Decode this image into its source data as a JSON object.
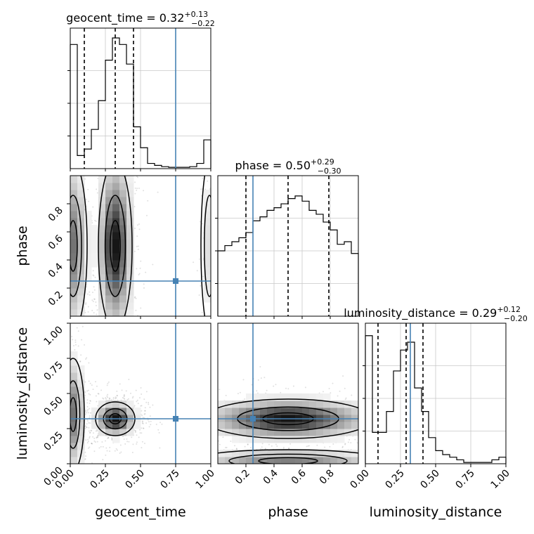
{
  "chart_data": {
    "type": "corner",
    "parameters": [
      "geocent_time",
      "phase",
      "luminosity_distance"
    ],
    "titles": [
      {
        "name": "geocent_time = 0.32",
        "sup": "+0.13",
        "sub": "−0.22"
      },
      {
        "name": "phase = 0.50",
        "sup": "+0.29",
        "sub": "−0.30"
      },
      {
        "name": "luminosity_distance = 0.29",
        "sup": "+0.12",
        "sub": "−0.20"
      }
    ],
    "axis_labels": {
      "x": [
        "geocent_time",
        "phase",
        "luminosity_distance"
      ],
      "y": [
        "phase",
        "luminosity_distance"
      ]
    },
    "ranges": [
      [
        0,
        1
      ],
      [
        0,
        1
      ],
      [
        0,
        1
      ]
    ],
    "ticks": {
      "geocent_time": [
        "0.00",
        "0.25",
        "0.50",
        "0.75",
        "1.00"
      ],
      "phase": [
        "0.2",
        "0.4",
        "0.6",
        "0.8"
      ],
      "luminosity_distance": [
        "0.00",
        "0.25",
        "0.50",
        "0.75",
        "1.00"
      ]
    },
    "tick_values": {
      "geocent_time": [
        0,
        0.25,
        0.5,
        0.75,
        1.0
      ],
      "phase": [
        0.2,
        0.4,
        0.6,
        0.8
      ],
      "luminosity_distance": [
        0,
        0.25,
        0.5,
        0.75,
        1.0
      ]
    },
    "truths": [
      0.75,
      0.25,
      0.32
    ],
    "truth_color": "#4682b4",
    "quantiles": [
      [
        0.1,
        0.32,
        0.45
      ],
      [
        0.2,
        0.5,
        0.79
      ],
      [
        0.09,
        0.29,
        0.41
      ]
    ],
    "histograms": [
      {
        "bin_edges": [
          0,
          0.05,
          0.1,
          0.15,
          0.2,
          0.25,
          0.3,
          0.35,
          0.4,
          0.45,
          0.5,
          0.55,
          0.6,
          0.65,
          0.7,
          0.75,
          0.8,
          0.85,
          0.9,
          0.95,
          1.0
        ],
        "counts": [
          0.95,
          0.1,
          0.15,
          0.3,
          0.52,
          0.83,
          1.0,
          0.95,
          0.8,
          0.32,
          0.16,
          0.04,
          0.025,
          0.015,
          0.01,
          0.01,
          0.01,
          0.015,
          0.04,
          0.22
        ]
      },
      {
        "bin_edges": [
          0,
          0.05,
          0.1,
          0.15,
          0.2,
          0.25,
          0.3,
          0.35,
          0.4,
          0.45,
          0.5,
          0.55,
          0.6,
          0.65,
          0.7,
          0.75,
          0.8,
          0.85,
          0.9,
          0.95,
          1.0
        ],
        "counts": [
          0.5,
          0.54,
          0.57,
          0.6,
          0.64,
          0.73,
          0.76,
          0.81,
          0.83,
          0.86,
          0.9,
          0.92,
          0.88,
          0.81,
          0.78,
          0.72,
          0.66,
          0.55,
          0.57,
          0.48
        ]
      },
      {
        "bin_edges": [
          0,
          0.05,
          0.1,
          0.15,
          0.2,
          0.25,
          0.3,
          0.35,
          0.4,
          0.45,
          0.5,
          0.55,
          0.6,
          0.65,
          0.7,
          0.75,
          0.8,
          0.85,
          0.9,
          0.95,
          1.0
        ],
        "counts": [
          0.98,
          0.24,
          0.24,
          0.4,
          0.71,
          0.87,
          0.93,
          0.58,
          0.4,
          0.2,
          0.1,
          0.07,
          0.05,
          0.03,
          0.01,
          0.01,
          0.01,
          0.01,
          0.03,
          0.05
        ]
      }
    ],
    "density_blobs": [
      {
        "panel": "phase_vs_geocent_time",
        "x": 0.32,
        "y": 0.5,
        "sx": 0.06,
        "sy": 0.3,
        "weight": 1.0
      },
      {
        "panel": "phase_vs_geocent_time",
        "x": 0.02,
        "y": 0.5,
        "sx": 0.05,
        "sy": 0.3,
        "weight": 0.6
      },
      {
        "panel": "phase_vs_geocent_time",
        "x": 0.99,
        "y": 0.5,
        "sx": 0.03,
        "sy": 0.3,
        "weight": 0.15
      },
      {
        "panel": "luminosity_distance_vs_geocent_time",
        "x": 0.32,
        "y": 0.32,
        "sx": 0.07,
        "sy": 0.06,
        "weight": 1.0
      },
      {
        "panel": "luminosity_distance_vs_geocent_time",
        "x": 0.02,
        "y": 0.35,
        "sx": 0.04,
        "sy": 0.2,
        "weight": 0.6
      },
      {
        "panel": "luminosity_distance_vs_phase",
        "x": 0.5,
        "y": 0.32,
        "sx": 0.3,
        "sy": 0.07,
        "weight": 1.0
      },
      {
        "panel": "luminosity_distance_vs_phase",
        "x": 0.5,
        "y": 0.02,
        "sx": 0.35,
        "sy": 0.04,
        "weight": 0.55
      }
    ],
    "grid": true
  }
}
